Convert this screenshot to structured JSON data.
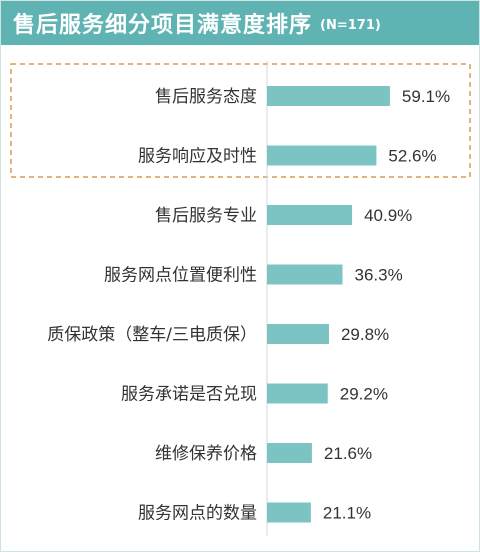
{
  "header": {
    "title": "售后服务细分项目满意度排序",
    "subtitle": "(N=171)"
  },
  "colors": {
    "header_bg": "#5fb3b3",
    "bar": "#7cc4c4",
    "highlight_border": "#d99a4e"
  },
  "chart_data": {
    "type": "bar",
    "orientation": "horizontal",
    "title": "售后服务细分项目满意度排序",
    "subtitle": "(N=171)",
    "categories": [
      "售后服务态度",
      "服务响应及时性",
      "售后服务专业",
      "服务网点位置便利性",
      "质保政策（整车/三电质保）",
      "服务承诺是否兑现",
      "维修保养价格",
      "服务网点的数量"
    ],
    "values": [
      59.1,
      52.6,
      40.9,
      36.3,
      29.8,
      29.2,
      21.6,
      21.1
    ],
    "value_labels": [
      "59.1%",
      "52.6%",
      "40.9%",
      "36.3%",
      "29.8%",
      "29.2%",
      "21.6%",
      "21.1%"
    ],
    "unit": "%",
    "xlim": [
      0,
      100
    ],
    "grid": false,
    "legend": "none",
    "highlighted_categories": [
      "售后服务态度",
      "服务响应及时性"
    ]
  }
}
